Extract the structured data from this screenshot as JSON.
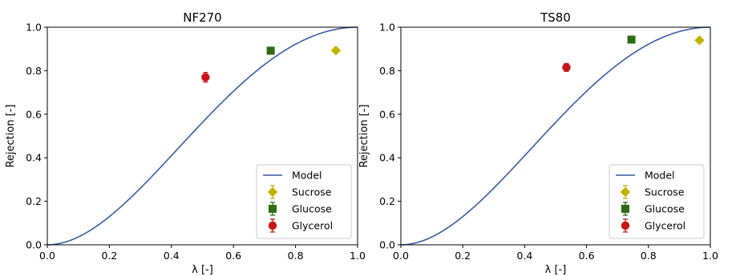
{
  "chart_data": [
    {
      "type": "scatter",
      "title": "NF270",
      "xlabel": "λ [-]",
      "ylabel": "Rejection [-]",
      "xlim": [
        0.0,
        1.0
      ],
      "ylim": [
        0.0,
        1.0
      ],
      "xticks": [
        "0.0",
        "0.2",
        "0.4",
        "0.6",
        "0.8",
        "1.0"
      ],
      "yticks": [
        "0.0",
        "0.2",
        "0.4",
        "0.6",
        "0.8",
        "1.0"
      ],
      "grid": false,
      "legend_position": "lower-right",
      "model": {
        "name": "Model",
        "color": "#3b5ba5",
        "type": "line"
      },
      "series": [
        {
          "name": "Sucrose",
          "marker": "diamond",
          "color": "#c2b300",
          "x": 0.93,
          "y": 0.893,
          "err": 0.0
        },
        {
          "name": "Glucose",
          "marker": "square",
          "color": "#2e6b12",
          "x": 0.72,
          "y": 0.892,
          "err": 0.008
        },
        {
          "name": "Glycerol",
          "marker": "circle",
          "color": "#c91515",
          "x": 0.51,
          "y": 0.77,
          "err": 0.022
        }
      ]
    },
    {
      "type": "scatter",
      "title": "TS80",
      "xlabel": "λ [-]",
      "ylabel": "Rejection [-]",
      "xlim": [
        0.0,
        1.0
      ],
      "ylim": [
        0.0,
        1.0
      ],
      "xticks": [
        "0.0",
        "0.2",
        "0.4",
        "0.6",
        "0.8",
        "1.0"
      ],
      "yticks": [
        "0.0",
        "0.2",
        "0.4",
        "0.6",
        "0.8",
        "1.0"
      ],
      "grid": false,
      "legend_position": "lower-right",
      "model": {
        "name": "Model",
        "color": "#3b5ba5",
        "type": "line"
      },
      "series": [
        {
          "name": "Sucrose",
          "marker": "diamond",
          "color": "#c2b300",
          "x": 0.965,
          "y": 0.94,
          "err": 0.0
        },
        {
          "name": "Glucose",
          "marker": "square",
          "color": "#2e6b12",
          "x": 0.745,
          "y": 0.943,
          "err": 0.008
        },
        {
          "name": "Glycerol",
          "marker": "circle",
          "color": "#c91515",
          "x": 0.535,
          "y": 0.815,
          "err": 0.018
        }
      ]
    }
  ]
}
